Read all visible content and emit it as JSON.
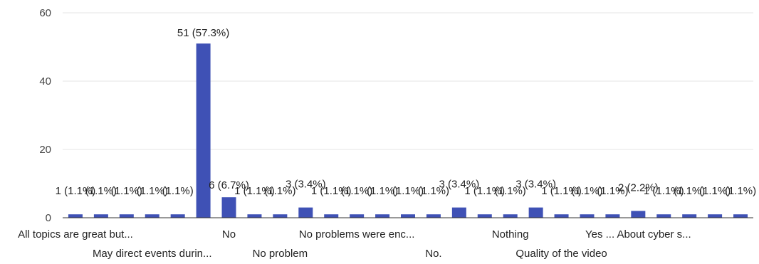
{
  "chart_data": {
    "type": "bar",
    "title": "",
    "xlabel": "",
    "ylabel": "",
    "ylim": [
      0,
      60
    ],
    "yticks": [
      0,
      20,
      40,
      60
    ],
    "grid": true,
    "bar_color": "#3f51b5",
    "categories": [
      "All topics are great but...",
      "",
      "",
      "May direct events durin...",
      "",
      "",
      "No",
      "",
      "No problem",
      "",
      "",
      "No problems were enc...",
      "",
      "",
      "No.",
      "",
      "",
      "Nothing",
      "",
      "Quality of the video",
      "",
      "",
      "Yes ... About cyber s...",
      "",
      "",
      "",
      ""
    ],
    "values": [
      1,
      1,
      1,
      1,
      1,
      51,
      6,
      1,
      1,
      3,
      1,
      1,
      1,
      1,
      1,
      3,
      1,
      1,
      3,
      1,
      1,
      1,
      2,
      1,
      1,
      1,
      1
    ],
    "data_labels": [
      "1 (1.1%)",
      "(1.1%)",
      "(1.1%)",
      "(1.1%)",
      "(1.1%)",
      "51 (57.3%)",
      "6 (6.7%)",
      "1 (1.1%)",
      "(1.1%)",
      "3 (3.4%)",
      "1 (1.1%)",
      "(1.1%)",
      "(1.1%)",
      "(1.1%)",
      "(1.1%)",
      "3 (3.4%)",
      "1 (1.1%)",
      "(1.1%)",
      "3 (3.4%)",
      "1 (1.1%)",
      "(1.1%)",
      "(1.1%)",
      "2 (2.2%)",
      "1 (1.1%)",
      "(1.1%)",
      "(1.1%)",
      "(1.1%)"
    ],
    "x_labels_visible": [
      {
        "index": 0,
        "text": "All topics are great but...",
        "row": 0
      },
      {
        "index": 3,
        "text": "May direct events durin...",
        "row": 1
      },
      {
        "index": 6,
        "text": "No",
        "row": 0
      },
      {
        "index": 8,
        "text": "No problem",
        "row": 1
      },
      {
        "index": 11,
        "text": "No problems were enc...",
        "row": 0
      },
      {
        "index": 14,
        "text": "No.",
        "row": 1
      },
      {
        "index": 17,
        "text": "Nothing",
        "row": 0
      },
      {
        "index": 19,
        "text": "Quality of the video",
        "row": 1
      },
      {
        "index": 22,
        "text": "Yes ... About cyber s...",
        "row": 0
      }
    ]
  }
}
